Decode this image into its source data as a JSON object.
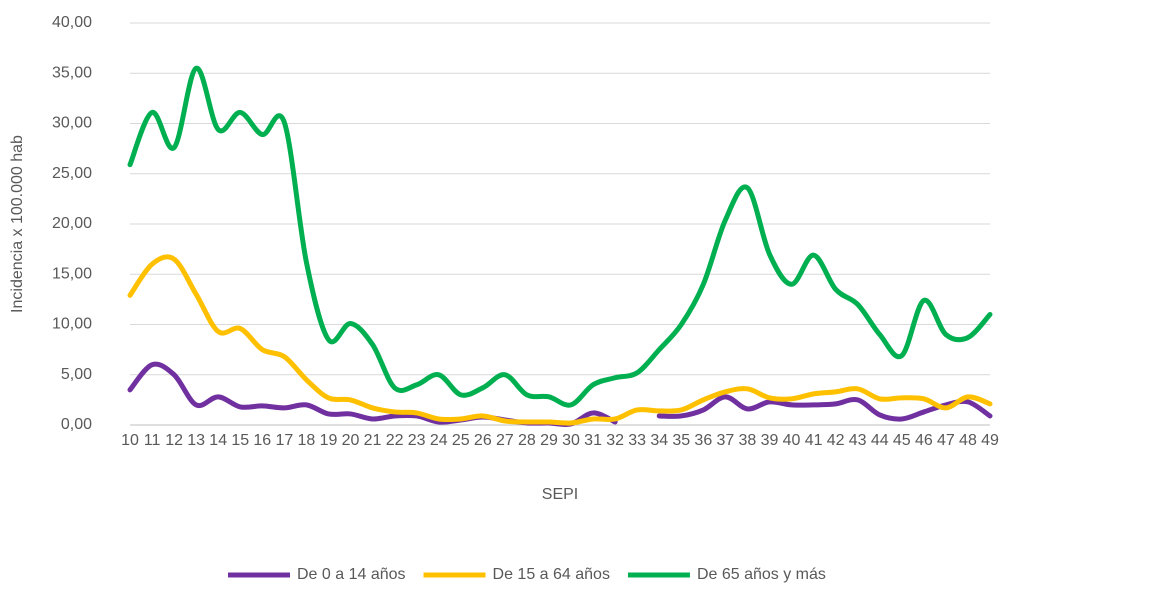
{
  "chart_data": {
    "type": "line",
    "categories": [
      "10",
      "11",
      "12",
      "13",
      "14",
      "15",
      "16",
      "17",
      "18",
      "19",
      "20",
      "21",
      "22",
      "23",
      "24",
      "25",
      "26",
      "27",
      "28",
      "29",
      "30",
      "31",
      "32",
      "33",
      "34",
      "35",
      "36",
      "37",
      "38",
      "39",
      "40",
      "41",
      "42",
      "43",
      "44",
      "45",
      "46",
      "47",
      "48",
      "49"
    ],
    "x_label": "SEPI",
    "y_label": "Incidencia x 100.000 hab",
    "ylim": [
      0,
      40
    ],
    "yticks": [
      {
        "value": 0,
        "label": "0,00"
      },
      {
        "value": 5,
        "label": "5,00"
      },
      {
        "value": 10,
        "label": "10,00"
      },
      {
        "value": 15,
        "label": "15,00"
      },
      {
        "value": 20,
        "label": "20,00"
      },
      {
        "value": 25,
        "label": "25,00"
      },
      {
        "value": 30,
        "label": "30,00"
      },
      {
        "value": 35,
        "label": "35,00"
      },
      {
        "value": 40,
        "label": "40,00"
      }
    ],
    "grid": true,
    "legend": "bottom",
    "series": [
      {
        "name": "De 0 a 14 años",
        "color": "#7030a0",
        "values": [
          3.5,
          6.0,
          5.0,
          2.0,
          2.8,
          1.8,
          1.9,
          1.7,
          2.0,
          1.1,
          1.1,
          0.6,
          0.9,
          0.9,
          0.3,
          0.5,
          0.8,
          0.5,
          0.2,
          0.2,
          0.1,
          1.2,
          0.3,
          null,
          0.9,
          0.9,
          1.5,
          2.8,
          1.6,
          2.3,
          2.0,
          2.0,
          2.1,
          2.5,
          1.0,
          0.6,
          1.3,
          2.0,
          2.3,
          0.9
        ]
      },
      {
        "name": "De 15 a 64 años",
        "color": "#ffc000",
        "values": [
          12.9,
          16.0,
          16.5,
          13.0,
          9.3,
          9.6,
          7.5,
          6.8,
          4.5,
          2.7,
          2.5,
          1.7,
          1.3,
          1.2,
          0.6,
          0.6,
          0.9,
          0.4,
          0.3,
          0.3,
          0.2,
          0.6,
          0.6,
          1.5,
          1.4,
          1.5,
          2.5,
          3.3,
          3.6,
          2.7,
          2.6,
          3.1,
          3.3,
          3.6,
          2.6,
          2.7,
          2.6,
          1.7,
          2.8,
          2.1
        ]
      },
      {
        "name": "De 65 años y más",
        "color": "#00b050",
        "values": [
          25.9,
          31.1,
          27.6,
          35.5,
          29.4,
          31.1,
          28.9,
          30.1,
          16.2,
          8.5,
          10.1,
          8.0,
          3.7,
          4.0,
          5.0,
          3.0,
          3.7,
          5.0,
          3.0,
          2.8,
          2.0,
          4.0,
          4.7,
          5.2,
          7.5,
          10.0,
          14.0,
          20.4,
          23.6,
          17.0,
          14.0,
          16.9,
          13.5,
          12.0,
          9.0,
          6.9,
          12.4,
          9.0,
          8.7,
          11.0
        ]
      }
    ]
  }
}
